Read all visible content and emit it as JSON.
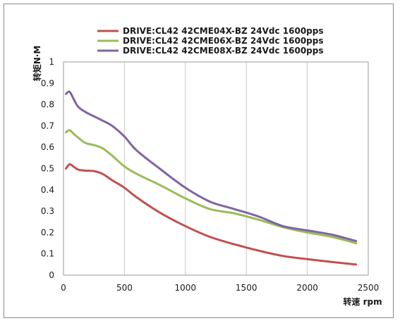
{
  "chart_data": {
    "type": "line",
    "xlabel": "转速 rpm",
    "ylabel": "转矩N·M",
    "xlim": [
      0,
      2500
    ],
    "ylim": [
      0,
      1
    ],
    "x_ticks": [
      0,
      500,
      1000,
      1500,
      2000,
      2500
    ],
    "y_ticks": [
      0,
      0.1,
      0.2,
      0.3,
      0.4,
      0.5,
      0.6,
      0.7,
      0.8,
      0.9,
      1
    ],
    "grid": "vertical",
    "legend_position": "top",
    "series": [
      {
        "name": "DRIVE:CL42 42CME04X-BZ 24Vdc 1600pps",
        "color": "#c0504d",
        "x": [
          20,
          50,
          80,
          120,
          180,
          250,
          320,
          400,
          500,
          600,
          800,
          1000,
          1200,
          1400,
          1600,
          1800,
          2000,
          2200,
          2400
        ],
        "y": [
          0.5,
          0.52,
          0.51,
          0.495,
          0.49,
          0.488,
          0.475,
          0.445,
          0.41,
          0.365,
          0.29,
          0.23,
          0.18,
          0.145,
          0.115,
          0.09,
          0.075,
          0.062,
          0.05
        ]
      },
      {
        "name": "DRIVE:CL42 42CME06X-BZ 24Vdc 1600pps",
        "color": "#9bbb59",
        "x": [
          20,
          50,
          80,
          120,
          180,
          250,
          320,
          400,
          500,
          600,
          800,
          1000,
          1200,
          1400,
          1600,
          1800,
          2000,
          2200,
          2400
        ],
        "y": [
          0.67,
          0.68,
          0.665,
          0.645,
          0.62,
          0.61,
          0.595,
          0.56,
          0.51,
          0.475,
          0.42,
          0.36,
          0.31,
          0.29,
          0.26,
          0.225,
          0.2,
          0.18,
          0.15
        ]
      },
      {
        "name": "DRIVE:CL42 42CME08X-BZ 24Vdc 1600pps",
        "color": "#8064a2",
        "x": [
          20,
          50,
          80,
          120,
          180,
          250,
          320,
          400,
          500,
          600,
          800,
          1000,
          1200,
          1400,
          1600,
          1800,
          2000,
          2200,
          2400
        ],
        "y": [
          0.85,
          0.86,
          0.83,
          0.79,
          0.765,
          0.745,
          0.725,
          0.7,
          0.65,
          0.585,
          0.495,
          0.41,
          0.345,
          0.31,
          0.275,
          0.23,
          0.21,
          0.19,
          0.16
        ]
      }
    ]
  }
}
